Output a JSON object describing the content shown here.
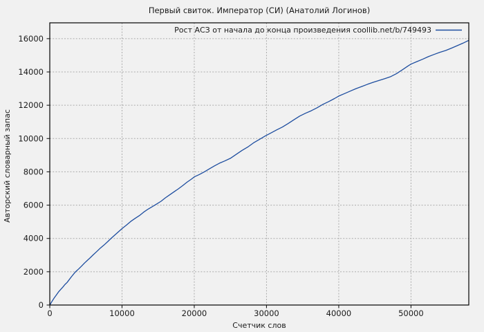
{
  "title": "Первый свиток. Император (СИ) (Анатолий Логинов)",
  "colors": {
    "background": "#f1f1f1",
    "frame": "#000000",
    "grid": "#ababab",
    "tick": "#1a1a1a",
    "text": "#1a1a1a",
    "line": "#1d4d9f"
  },
  "chart_data": {
    "type": "line",
    "title": "Первый свиток. Император (СИ) (Анатолий Логинов)",
    "xlabel": "Счетчик слов",
    "ylabel": "Авторский словарный запас",
    "xlim": [
      0,
      58000
    ],
    "ylim": [
      0,
      16950
    ],
    "xticks": [
      0,
      10000,
      20000,
      30000,
      40000,
      50000
    ],
    "yticks": [
      0,
      2000,
      4000,
      6000,
      8000,
      10000,
      12000,
      14000,
      16000
    ],
    "grid": true,
    "grid_style": "dashed",
    "legend_position": "top-right-inside",
    "series": [
      {
        "name": "Рост АСЗ от начала до конца произведения coollib.net/b/749493",
        "color": "#1d4d9f",
        "points": [
          [
            0,
            0
          ],
          [
            300,
            210
          ],
          [
            600,
            420
          ],
          [
            900,
            600
          ],
          [
            1200,
            780
          ],
          [
            1500,
            930
          ],
          [
            1800,
            1070
          ],
          [
            2100,
            1230
          ],
          [
            2400,
            1360
          ],
          [
            2700,
            1530
          ],
          [
            3000,
            1700
          ],
          [
            3300,
            1860
          ],
          [
            3600,
            2010
          ],
          [
            4000,
            2170
          ],
          [
            4400,
            2340
          ],
          [
            4800,
            2520
          ],
          [
            5200,
            2680
          ],
          [
            5600,
            2840
          ],
          [
            6000,
            3010
          ],
          [
            6500,
            3210
          ],
          [
            7000,
            3420
          ],
          [
            7500,
            3600
          ],
          [
            8000,
            3800
          ],
          [
            8500,
            4010
          ],
          [
            9000,
            4200
          ],
          [
            9500,
            4400
          ],
          [
            10000,
            4590
          ],
          [
            10600,
            4800
          ],
          [
            11200,
            5020
          ],
          [
            11800,
            5200
          ],
          [
            12400,
            5370
          ],
          [
            13000,
            5580
          ],
          [
            13600,
            5760
          ],
          [
            14200,
            5910
          ],
          [
            14800,
            6070
          ],
          [
            15400,
            6230
          ],
          [
            16000,
            6440
          ],
          [
            16600,
            6620
          ],
          [
            17200,
            6800
          ],
          [
            17800,
            6980
          ],
          [
            18400,
            7170
          ],
          [
            19000,
            7380
          ],
          [
            19600,
            7560
          ],
          [
            20000,
            7700
          ],
          [
            20700,
            7840
          ],
          [
            21400,
            8000
          ],
          [
            22100,
            8180
          ],
          [
            22800,
            8360
          ],
          [
            23500,
            8520
          ],
          [
            24200,
            8650
          ],
          [
            25000,
            8810
          ],
          [
            25800,
            9050
          ],
          [
            26600,
            9280
          ],
          [
            27400,
            9490
          ],
          [
            28200,
            9740
          ],
          [
            29000,
            9940
          ],
          [
            29800,
            10150
          ],
          [
            30600,
            10330
          ],
          [
            31400,
            10520
          ],
          [
            32200,
            10690
          ],
          [
            33000,
            10900
          ],
          [
            33800,
            11130
          ],
          [
            34600,
            11350
          ],
          [
            35400,
            11520
          ],
          [
            36200,
            11670
          ],
          [
            37000,
            11850
          ],
          [
            37800,
            12050
          ],
          [
            38600,
            12220
          ],
          [
            39400,
            12400
          ],
          [
            40000,
            12550
          ],
          [
            40800,
            12700
          ],
          [
            41600,
            12850
          ],
          [
            42400,
            13000
          ],
          [
            43200,
            13130
          ],
          [
            44000,
            13260
          ],
          [
            44800,
            13380
          ],
          [
            45600,
            13490
          ],
          [
            46400,
            13600
          ],
          [
            47200,
            13720
          ],
          [
            48000,
            13900
          ],
          [
            48800,
            14130
          ],
          [
            49600,
            14360
          ],
          [
            50000,
            14470
          ],
          [
            50800,
            14620
          ],
          [
            51600,
            14760
          ],
          [
            52400,
            14920
          ],
          [
            53200,
            15050
          ],
          [
            54000,
            15180
          ],
          [
            54800,
            15290
          ],
          [
            55600,
            15430
          ],
          [
            56400,
            15580
          ],
          [
            57200,
            15730
          ],
          [
            58000,
            15900
          ]
        ]
      }
    ]
  }
}
